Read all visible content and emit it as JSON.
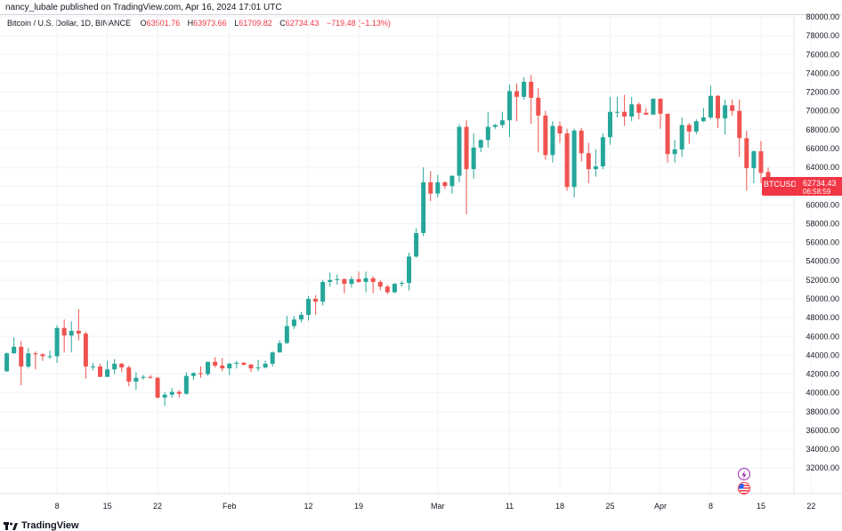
{
  "header": {
    "publish_info": "nancy_lubale published on TradingView.com, Apr 16, 2024 17:01 UTC"
  },
  "legend": {
    "symbol_name": "Bitcoin / U.S. Dollar, 1D, BINANCE",
    "open_label": "O",
    "open_value": "63501.76",
    "high_label": "H",
    "high_value": "63973.66",
    "low_label": "L",
    "low_value": "61709.82",
    "close_label": "C",
    "close_value": "62734.43",
    "change": "−719.48 (−1.13%)"
  },
  "price_tag": {
    "symbol": "BTCUSD",
    "price": "62734.43",
    "countdown": "06:58:59"
  },
  "footer": {
    "brand": "TradingView",
    "logo_icon": "tradingview-logo-icon"
  },
  "icons": {
    "event_icon": "lightning-icon",
    "flag_icon": "us-flag-icon"
  },
  "colors": {
    "up": "#26a69a",
    "down": "#ef5350",
    "grid": "#f0f3fa",
    "price_tag": "#f23645"
  },
  "chart_data": {
    "type": "candlestick",
    "title": "Bitcoin / U.S. Dollar, 1D, BINANCE",
    "y_axis": {
      "side": "right",
      "ticks": [
        32000,
        34000,
        36000,
        38000,
        40000,
        42000,
        44000,
        46000,
        48000,
        50000,
        52000,
        54000,
        56000,
        58000,
        60000,
        62000,
        64000,
        66000,
        68000,
        70000,
        72000,
        74000,
        76000,
        78000,
        80000
      ],
      "tick_labels": [
        "32000.00",
        "34000.00",
        "36000.00",
        "38000.00",
        "40000.00",
        "42000.00",
        "44000.00",
        "46000.00",
        "48000.00",
        "50000.00",
        "52000.00",
        "54000.00",
        "56000.00",
        "58000.00",
        "60000.00",
        "62000.00",
        "64000.00",
        "66000.00",
        "68000.00",
        "70000.00",
        "72000.00",
        "74000.00",
        "76000.00",
        "78000.00",
        "80000.00"
      ],
      "range": [
        30600,
        80000
      ]
    },
    "x_axis": {
      "start_date": "2024-01-01",
      "end_date": "2024-04-22",
      "ticks": [
        {
          "date": "2024-01-08",
          "label": "8"
        },
        {
          "date": "2024-01-15",
          "label": "15"
        },
        {
          "date": "2024-01-22",
          "label": "22"
        },
        {
          "date": "2024-02-01",
          "label": "Feb"
        },
        {
          "date": "2024-02-12",
          "label": "12"
        },
        {
          "date": "2024-02-19",
          "label": "19"
        },
        {
          "date": "2024-03-01",
          "label": "Mar"
        },
        {
          "date": "2024-03-11",
          "label": "11"
        },
        {
          "date": "2024-03-18",
          "label": "18"
        },
        {
          "date": "2024-03-25",
          "label": "25"
        },
        {
          "date": "2024-04-01",
          "label": "Apr"
        },
        {
          "date": "2024-04-08",
          "label": "8"
        },
        {
          "date": "2024-04-15",
          "label": "15"
        },
        {
          "date": "2024-04-22",
          "label": "22"
        }
      ]
    },
    "grid": true,
    "candles": [
      {
        "date": "2024-01-01",
        "o": 42300,
        "h": 44300,
        "l": 42200,
        "c": 44200
      },
      {
        "date": "2024-01-02",
        "o": 44200,
        "h": 45900,
        "l": 44200,
        "c": 44900
      },
      {
        "date": "2024-01-03",
        "o": 44900,
        "h": 45500,
        "l": 40800,
        "c": 42800
      },
      {
        "date": "2024-01-04",
        "o": 42800,
        "h": 44800,
        "l": 42600,
        "c": 44200
      },
      {
        "date": "2024-01-05",
        "o": 44200,
        "h": 44400,
        "l": 42500,
        "c": 44100
      },
      {
        "date": "2024-01-06",
        "o": 44100,
        "h": 44200,
        "l": 43400,
        "c": 43900
      },
      {
        "date": "2024-01-07",
        "o": 43900,
        "h": 44500,
        "l": 43600,
        "c": 43900
      },
      {
        "date": "2024-01-08",
        "o": 43900,
        "h": 47200,
        "l": 43200,
        "c": 46900
      },
      {
        "date": "2024-01-09",
        "o": 46900,
        "h": 47800,
        "l": 44300,
        "c": 46100
      },
      {
        "date": "2024-01-10",
        "o": 46100,
        "h": 47600,
        "l": 44300,
        "c": 46600
      },
      {
        "date": "2024-01-11",
        "o": 46600,
        "h": 48900,
        "l": 45600,
        "c": 46300
      },
      {
        "date": "2024-01-12",
        "o": 46300,
        "h": 46500,
        "l": 41500,
        "c": 42800
      },
      {
        "date": "2024-01-13",
        "o": 42800,
        "h": 43200,
        "l": 42400,
        "c": 42800
      },
      {
        "date": "2024-01-14",
        "o": 42800,
        "h": 43100,
        "l": 41700,
        "c": 41700
      },
      {
        "date": "2024-01-15",
        "o": 41700,
        "h": 43400,
        "l": 41700,
        "c": 42500
      },
      {
        "date": "2024-01-16",
        "o": 42500,
        "h": 43600,
        "l": 42000,
        "c": 43100
      },
      {
        "date": "2024-01-17",
        "o": 43100,
        "h": 43200,
        "l": 42200,
        "c": 42700
      },
      {
        "date": "2024-01-18",
        "o": 42700,
        "h": 42900,
        "l": 40700,
        "c": 41200
      },
      {
        "date": "2024-01-19",
        "o": 41200,
        "h": 42200,
        "l": 40300,
        "c": 41600
      },
      {
        "date": "2024-01-20",
        "o": 41600,
        "h": 41900,
        "l": 41400,
        "c": 41700
      },
      {
        "date": "2024-01-21",
        "o": 41700,
        "h": 41900,
        "l": 41500,
        "c": 41600
      },
      {
        "date": "2024-01-22",
        "o": 41600,
        "h": 41700,
        "l": 39400,
        "c": 39500
      },
      {
        "date": "2024-01-23",
        "o": 39500,
        "h": 40100,
        "l": 38600,
        "c": 39800
      },
      {
        "date": "2024-01-24",
        "o": 39800,
        "h": 40500,
        "l": 39500,
        "c": 40100
      },
      {
        "date": "2024-01-25",
        "o": 40100,
        "h": 40300,
        "l": 39500,
        "c": 39900
      },
      {
        "date": "2024-01-26",
        "o": 39900,
        "h": 42200,
        "l": 39800,
        "c": 41800
      },
      {
        "date": "2024-01-27",
        "o": 41800,
        "h": 42200,
        "l": 41400,
        "c": 42100
      },
      {
        "date": "2024-01-28",
        "o": 42100,
        "h": 42800,
        "l": 41600,
        "c": 42000
      },
      {
        "date": "2024-01-29",
        "o": 42000,
        "h": 43300,
        "l": 41800,
        "c": 43300
      },
      {
        "date": "2024-01-30",
        "o": 43300,
        "h": 43800,
        "l": 42700,
        "c": 42900
      },
      {
        "date": "2024-01-31",
        "o": 42900,
        "h": 43700,
        "l": 42300,
        "c": 42600
      },
      {
        "date": "2024-02-01",
        "o": 42600,
        "h": 43200,
        "l": 41900,
        "c": 43100
      },
      {
        "date": "2024-02-02",
        "o": 43100,
        "h": 43400,
        "l": 42600,
        "c": 43200
      },
      {
        "date": "2024-02-03",
        "o": 43200,
        "h": 43300,
        "l": 42900,
        "c": 43000
      },
      {
        "date": "2024-02-04",
        "o": 43000,
        "h": 43100,
        "l": 42200,
        "c": 42600
      },
      {
        "date": "2024-02-05",
        "o": 42600,
        "h": 43500,
        "l": 42300,
        "c": 42700
      },
      {
        "date": "2024-02-06",
        "o": 42700,
        "h": 43400,
        "l": 42600,
        "c": 43100
      },
      {
        "date": "2024-02-07",
        "o": 43100,
        "h": 44400,
        "l": 42800,
        "c": 44300
      },
      {
        "date": "2024-02-08",
        "o": 44300,
        "h": 45600,
        "l": 44300,
        "c": 45300
      },
      {
        "date": "2024-02-09",
        "o": 45300,
        "h": 48200,
        "l": 45200,
        "c": 47100
      },
      {
        "date": "2024-02-10",
        "o": 47100,
        "h": 48200,
        "l": 46800,
        "c": 47800
      },
      {
        "date": "2024-02-11",
        "o": 47800,
        "h": 48600,
        "l": 47500,
        "c": 48300
      },
      {
        "date": "2024-02-12",
        "o": 48300,
        "h": 50300,
        "l": 47700,
        "c": 50000
      },
      {
        "date": "2024-02-13",
        "o": 50000,
        "h": 50400,
        "l": 48300,
        "c": 49700
      },
      {
        "date": "2024-02-14",
        "o": 49700,
        "h": 52000,
        "l": 49300,
        "c": 51800
      },
      {
        "date": "2024-02-15",
        "o": 51800,
        "h": 52800,
        "l": 51300,
        "c": 52000
      },
      {
        "date": "2024-02-16",
        "o": 52000,
        "h": 52600,
        "l": 51500,
        "c": 52100
      },
      {
        "date": "2024-02-17",
        "o": 52100,
        "h": 52200,
        "l": 50600,
        "c": 51600
      },
      {
        "date": "2024-02-18",
        "o": 51600,
        "h": 52400,
        "l": 51200,
        "c": 52100
      },
      {
        "date": "2024-02-19",
        "o": 52100,
        "h": 52900,
        "l": 51700,
        "c": 51800
      },
      {
        "date": "2024-02-20",
        "o": 51800,
        "h": 52900,
        "l": 50700,
        "c": 52200
      },
      {
        "date": "2024-02-21",
        "o": 52200,
        "h": 52400,
        "l": 50600,
        "c": 51800
      },
      {
        "date": "2024-02-22",
        "o": 51800,
        "h": 52000,
        "l": 50900,
        "c": 51300
      },
      {
        "date": "2024-02-23",
        "o": 51300,
        "h": 51500,
        "l": 50500,
        "c": 50700
      },
      {
        "date": "2024-02-24",
        "o": 50700,
        "h": 51700,
        "l": 50600,
        "c": 51600
      },
      {
        "date": "2024-02-25",
        "o": 51600,
        "h": 51900,
        "l": 51300,
        "c": 51700
      },
      {
        "date": "2024-02-26",
        "o": 51700,
        "h": 54900,
        "l": 50900,
        "c": 54500
      },
      {
        "date": "2024-02-27",
        "o": 54500,
        "h": 57500,
        "l": 54400,
        "c": 57000
      },
      {
        "date": "2024-02-28",
        "o": 57000,
        "h": 64000,
        "l": 56700,
        "c": 62400
      },
      {
        "date": "2024-02-29",
        "o": 62400,
        "h": 63600,
        "l": 60400,
        "c": 61200
      },
      {
        "date": "2024-03-01",
        "o": 61200,
        "h": 63200,
        "l": 60800,
        "c": 62400
      },
      {
        "date": "2024-03-02",
        "o": 62400,
        "h": 62500,
        "l": 61700,
        "c": 62000
      },
      {
        "date": "2024-03-03",
        "o": 62000,
        "h": 63100,
        "l": 61200,
        "c": 63100
      },
      {
        "date": "2024-03-04",
        "o": 63100,
        "h": 68600,
        "l": 62400,
        "c": 68300
      },
      {
        "date": "2024-03-05",
        "o": 68300,
        "h": 69000,
        "l": 59000,
        "c": 63800
      },
      {
        "date": "2024-03-06",
        "o": 63800,
        "h": 67600,
        "l": 62800,
        "c": 66100
      },
      {
        "date": "2024-03-07",
        "o": 66100,
        "h": 67000,
        "l": 65600,
        "c": 66900
      },
      {
        "date": "2024-03-08",
        "o": 66900,
        "h": 69900,
        "l": 66100,
        "c": 68300
      },
      {
        "date": "2024-03-09",
        "o": 68300,
        "h": 68600,
        "l": 68100,
        "c": 68500
      },
      {
        "date": "2024-03-10",
        "o": 68500,
        "h": 69900,
        "l": 68200,
        "c": 69000
      },
      {
        "date": "2024-03-11",
        "o": 69000,
        "h": 72800,
        "l": 67200,
        "c": 72100
      },
      {
        "date": "2024-03-12",
        "o": 72100,
        "h": 72900,
        "l": 68900,
        "c": 71500
      },
      {
        "date": "2024-03-13",
        "o": 71500,
        "h": 73600,
        "l": 71200,
        "c": 73100
      },
      {
        "date": "2024-03-14",
        "o": 73100,
        "h": 73800,
        "l": 68600,
        "c": 71400
      },
      {
        "date": "2024-03-15",
        "o": 71400,
        "h": 72400,
        "l": 65600,
        "c": 69500
      },
      {
        "date": "2024-03-16",
        "o": 69500,
        "h": 70000,
        "l": 64800,
        "c": 65300
      },
      {
        "date": "2024-03-17",
        "o": 65300,
        "h": 68900,
        "l": 64500,
        "c": 68400
      },
      {
        "date": "2024-03-18",
        "o": 68400,
        "h": 68900,
        "l": 66600,
        "c": 67600
      },
      {
        "date": "2024-03-19",
        "o": 67600,
        "h": 68100,
        "l": 61500,
        "c": 61900
      },
      {
        "date": "2024-03-20",
        "o": 61900,
        "h": 68100,
        "l": 60800,
        "c": 67900
      },
      {
        "date": "2024-03-21",
        "o": 67900,
        "h": 68200,
        "l": 64600,
        "c": 65500
      },
      {
        "date": "2024-03-22",
        "o": 65500,
        "h": 66600,
        "l": 62300,
        "c": 63800
      },
      {
        "date": "2024-03-23",
        "o": 63800,
        "h": 65900,
        "l": 63000,
        "c": 64100
      },
      {
        "date": "2024-03-24",
        "o": 64100,
        "h": 67600,
        "l": 63800,
        "c": 67200
      },
      {
        "date": "2024-03-25",
        "o": 67200,
        "h": 71500,
        "l": 66400,
        "c": 69900
      },
      {
        "date": "2024-03-26",
        "o": 69900,
        "h": 71500,
        "l": 69300,
        "c": 69900
      },
      {
        "date": "2024-03-27",
        "o": 69900,
        "h": 71700,
        "l": 68400,
        "c": 69400
      },
      {
        "date": "2024-03-28",
        "o": 69400,
        "h": 71500,
        "l": 68900,
        "c": 70700
      },
      {
        "date": "2024-03-29",
        "o": 70700,
        "h": 70900,
        "l": 69100,
        "c": 69800
      },
      {
        "date": "2024-03-30",
        "o": 69800,
        "h": 70300,
        "l": 69600,
        "c": 69600
      },
      {
        "date": "2024-03-31",
        "o": 69600,
        "h": 71300,
        "l": 69600,
        "c": 71300
      },
      {
        "date": "2024-04-01",
        "o": 71300,
        "h": 71300,
        "l": 68100,
        "c": 69700
      },
      {
        "date": "2024-04-02",
        "o": 69700,
        "h": 69700,
        "l": 64500,
        "c": 65400
      },
      {
        "date": "2024-04-03",
        "o": 65400,
        "h": 66900,
        "l": 64500,
        "c": 65900
      },
      {
        "date": "2024-04-04",
        "o": 65900,
        "h": 69300,
        "l": 65100,
        "c": 68500
      },
      {
        "date": "2024-04-05",
        "o": 68500,
        "h": 68700,
        "l": 66500,
        "c": 67800
      },
      {
        "date": "2024-04-06",
        "o": 67800,
        "h": 69100,
        "l": 67500,
        "c": 68900
      },
      {
        "date": "2024-04-07",
        "o": 68900,
        "h": 70300,
        "l": 68800,
        "c": 69300
      },
      {
        "date": "2024-04-08",
        "o": 69300,
        "h": 72700,
        "l": 69100,
        "c": 71600
      },
      {
        "date": "2024-04-09",
        "o": 71600,
        "h": 71700,
        "l": 68200,
        "c": 69200
      },
      {
        "date": "2024-04-10",
        "o": 69200,
        "h": 71200,
        "l": 67500,
        "c": 70600
      },
      {
        "date": "2024-04-11",
        "o": 70600,
        "h": 71200,
        "l": 69500,
        "c": 70000
      },
      {
        "date": "2024-04-12",
        "o": 70000,
        "h": 71200,
        "l": 65100,
        "c": 67100
      },
      {
        "date": "2024-04-13",
        "o": 67100,
        "h": 67900,
        "l": 61500,
        "c": 63900
      },
      {
        "date": "2024-04-14",
        "o": 63900,
        "h": 65800,
        "l": 62300,
        "c": 65700
      },
      {
        "date": "2024-04-15",
        "o": 65700,
        "h": 66800,
        "l": 62300,
        "c": 63400
      },
      {
        "date": "2024-04-16",
        "o": 63502,
        "h": 63974,
        "l": 61710,
        "c": 62734
      }
    ]
  }
}
